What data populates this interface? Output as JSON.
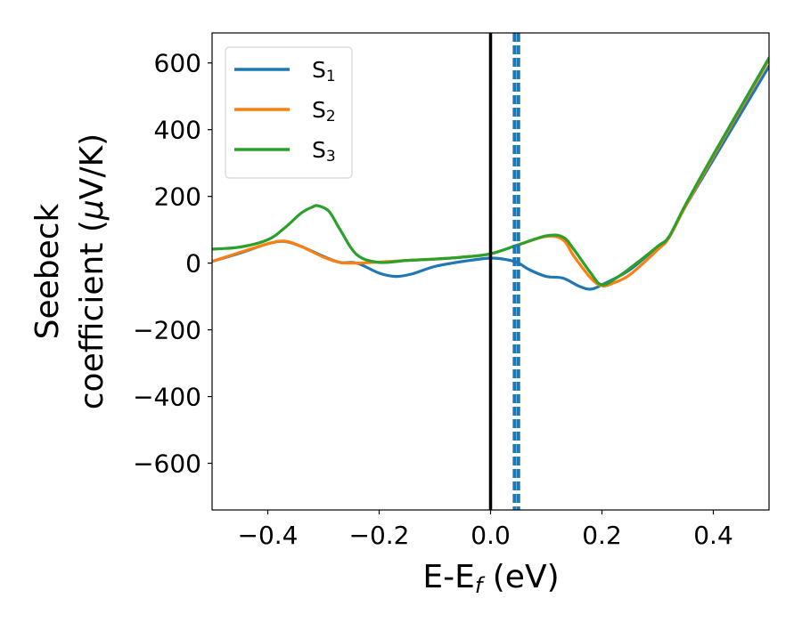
{
  "chart_data": {
    "type": "line",
    "xlabel": {
      "main": "E-E",
      "sub": "f",
      "unit": " (eV)"
    },
    "ylabel": {
      "line1": "Seebeck",
      "line2_prefix": "coefficient  (",
      "mu": "μ",
      "line2_suffix": "V/K)"
    },
    "xlim": [
      -0.5,
      0.5
    ],
    "ylim": [
      -740,
      690
    ],
    "xticks": [
      {
        "value": -0.4,
        "label": "−0.4"
      },
      {
        "value": -0.2,
        "label": "−0.2"
      },
      {
        "value": 0.0,
        "label": "0.0"
      },
      {
        "value": 0.2,
        "label": "0.2"
      },
      {
        "value": 0.4,
        "label": "0.4"
      }
    ],
    "yticks": [
      {
        "value": 600,
        "label": "600"
      },
      {
        "value": 400,
        "label": "400"
      },
      {
        "value": 200,
        "label": "200"
      },
      {
        "value": 0,
        "label": "0"
      },
      {
        "value": -200,
        "label": "−200"
      },
      {
        "value": -400,
        "label": "−400"
      },
      {
        "value": -600,
        "label": "−600"
      }
    ],
    "grid": false,
    "legend_position": "top-left",
    "vlines": [
      {
        "x": 0.0,
        "color": "#000000",
        "style": "solid"
      },
      {
        "x": 0.043,
        "color": "#1f77b4",
        "style": "dashed"
      },
      {
        "x": 0.05,
        "color": "#1f77b4",
        "style": "dashed"
      }
    ],
    "series": [
      {
        "name": "S",
        "sub": "1",
        "color": "#1f77b4",
        "x": [
          -0.5,
          -0.45,
          -0.4,
          -0.37,
          -0.34,
          -0.3,
          -0.27,
          -0.24,
          -0.2,
          -0.17,
          -0.14,
          -0.1,
          -0.05,
          0.0,
          0.03,
          0.05,
          0.07,
          0.1,
          0.13,
          0.16,
          0.18,
          0.2,
          0.25,
          0.3,
          0.32,
          0.35,
          0.4,
          0.45,
          0.5
        ],
        "y": [
          5,
          30,
          58,
          65,
          50,
          20,
          2,
          0,
          -30,
          -40,
          -32,
          -10,
          5,
          15,
          10,
          0,
          -20,
          -40,
          -45,
          -70,
          -78,
          -65,
          -20,
          50,
          78,
          170,
          310,
          450,
          590
        ]
      },
      {
        "name": "S",
        "sub": "2",
        "color": "#ff7f0e",
        "x": [
          -0.5,
          -0.45,
          -0.4,
          -0.37,
          -0.34,
          -0.3,
          -0.27,
          -0.24,
          -0.2,
          -0.15,
          -0.1,
          -0.05,
          0.0,
          0.05,
          0.1,
          0.13,
          0.15,
          0.18,
          0.2,
          0.22,
          0.25,
          0.3,
          0.32,
          0.35,
          0.4,
          0.45,
          0.5
        ],
        "y": [
          5,
          32,
          58,
          66,
          50,
          18,
          2,
          0,
          3,
          8,
          12,
          18,
          28,
          55,
          80,
          70,
          20,
          -45,
          -68,
          -60,
          -35,
          40,
          75,
          170,
          320,
          465,
          610
        ]
      },
      {
        "name": "S",
        "sub": "3",
        "color": "#2ca02c",
        "x": [
          -0.5,
          -0.45,
          -0.4,
          -0.37,
          -0.34,
          -0.32,
          -0.31,
          -0.29,
          -0.27,
          -0.24,
          -0.2,
          -0.15,
          -0.1,
          -0.05,
          0.0,
          0.05,
          0.1,
          0.13,
          0.15,
          0.18,
          0.2,
          0.23,
          0.27,
          0.3,
          0.32,
          0.35,
          0.4,
          0.45,
          0.5
        ],
        "y": [
          42,
          48,
          70,
          105,
          150,
          168,
          172,
          155,
          100,
          25,
          2,
          8,
          12,
          18,
          28,
          55,
          82,
          78,
          40,
          -30,
          -65,
          -40,
          10,
          50,
          78,
          175,
          325,
          470,
          615
        ]
      }
    ]
  }
}
